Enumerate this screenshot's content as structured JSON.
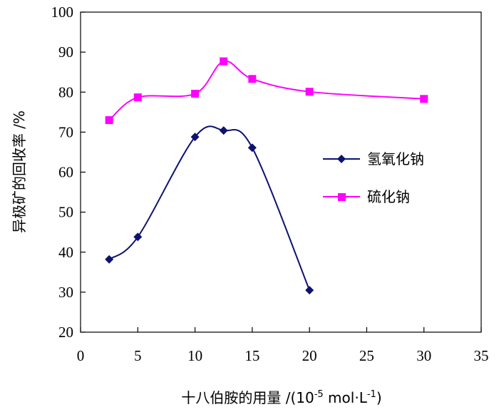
{
  "chart_data": {
    "type": "line",
    "xlabel": "十八伯胺的用量 /(10-5 mol·L-1)",
    "xlabel_parts": {
      "main": "十八伯胺的用量 /(10",
      "exp1": "-5",
      "mid": " mol·L",
      "exp2": "-1",
      "end": ")"
    },
    "ylabel": "异极矿的回收率 /%",
    "xlim": [
      0,
      35
    ],
    "ylim": [
      20,
      100
    ],
    "xticks": [
      0,
      5,
      10,
      15,
      20,
      25,
      30,
      35
    ],
    "yticks": [
      20,
      30,
      40,
      50,
      60,
      70,
      80,
      90,
      100
    ],
    "grid": false,
    "legend_position": "right",
    "series": [
      {
        "name": "氢氧化钠",
        "color": "#0d1270",
        "marker": "diamond",
        "x": [
          2.5,
          5,
          10,
          12.5,
          15,
          20
        ],
        "y": [
          38.2,
          43.8,
          68.8,
          70.4,
          66.1,
          30.5
        ]
      },
      {
        "name": "硫化钠",
        "color": "#ff00ff",
        "marker": "square",
        "x": [
          2.5,
          5,
          10,
          12.5,
          15,
          20,
          30
        ],
        "y": [
          73.0,
          78.7,
          79.6,
          87.7,
          83.3,
          80.1,
          78.3
        ]
      }
    ]
  }
}
